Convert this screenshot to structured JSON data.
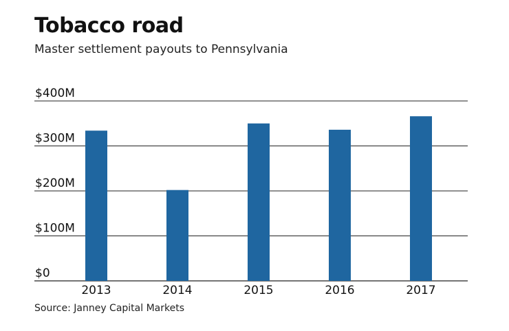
{
  "header": {
    "title": "Tobacco road",
    "subtitle": "Master settlement payouts to Pennsylvania"
  },
  "footer": {
    "source": "Source: Janney Capital Markets"
  },
  "colors": {
    "bar": "#1f66a0",
    "gridline": "#222222"
  },
  "chart_data": {
    "type": "bar",
    "title": "Tobacco road",
    "subtitle": "Master settlement payouts to Pennsylvania",
    "categories": [
      "2013",
      "2014",
      "2015",
      "2016",
      "2017"
    ],
    "values": [
      334,
      202,
      350,
      336,
      366
    ],
    "unit": "$M",
    "ylim": [
      0,
      400
    ],
    "yticks": [
      0,
      100,
      200,
      300,
      400
    ],
    "ytick_labels": [
      "$0",
      "$100M",
      "$200M",
      "$300M",
      "$400M"
    ],
    "xlabel": "",
    "ylabel": "",
    "grid": true,
    "legend": "none"
  }
}
